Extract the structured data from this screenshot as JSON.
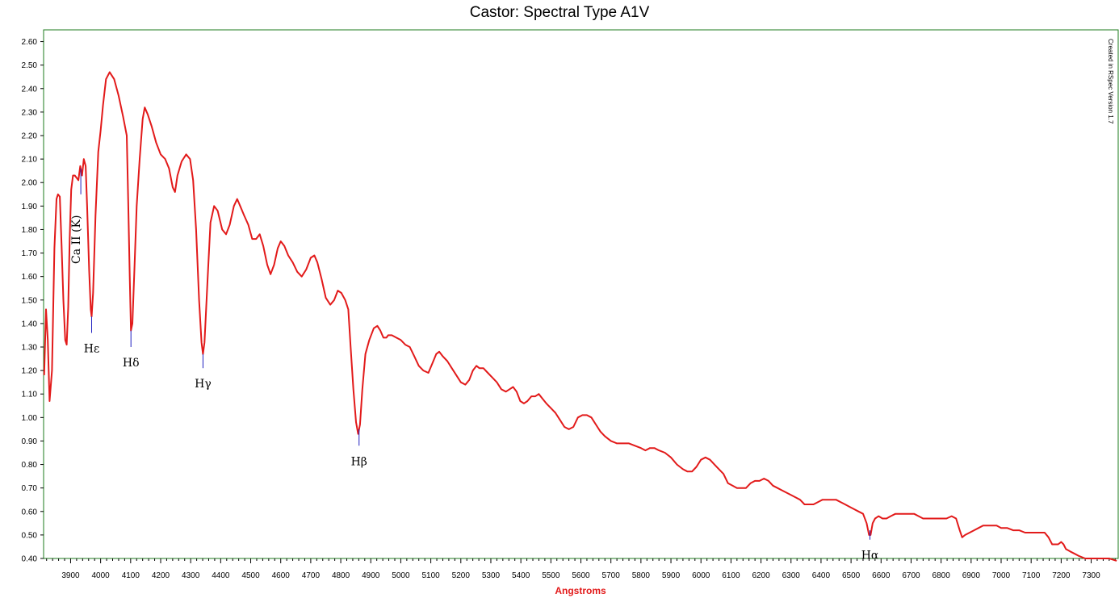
{
  "chart_data": {
    "type": "line",
    "title": "Castor: Spectral Type A1V",
    "xlabel": "Angstroms",
    "ylabel": "",
    "xlim": [
      3810,
      7390
    ],
    "ylim": [
      0.4,
      2.65
    ],
    "x_ticks": [
      3900,
      4000,
      4100,
      4200,
      4300,
      4400,
      4500,
      4600,
      4700,
      4800,
      4900,
      5000,
      5100,
      5200,
      5300,
      5400,
      5500,
      5600,
      5700,
      5800,
      5900,
      6000,
      6100,
      6200,
      6300,
      6400,
      6500,
      6600,
      6700,
      6800,
      6900,
      7000,
      7100,
      7200,
      7300
    ],
    "y_ticks": [
      "0.40",
      "0.50",
      "0.60",
      "0.70",
      "0.80",
      "0.90",
      "1.00",
      "1.10",
      "1.20",
      "1.30",
      "1.40",
      "1.50",
      "1.60",
      "1.70",
      "1.80",
      "1.90",
      "2.00",
      "2.10",
      "2.20",
      "2.30",
      "2.40",
      "2.50",
      "2.60"
    ],
    "grid": false,
    "series": [
      {
        "color": "#e21a1a",
        "points": [
          [
            3812,
            1.18
          ],
          [
            3818,
            1.46
          ],
          [
            3824,
            1.33
          ],
          [
            3830,
            1.07
          ],
          [
            3838,
            1.2
          ],
          [
            3846,
            1.72
          ],
          [
            3853,
            1.93
          ],
          [
            3858,
            1.95
          ],
          [
            3864,
            1.94
          ],
          [
            3870,
            1.73
          ],
          [
            3876,
            1.5
          ],
          [
            3882,
            1.33
          ],
          [
            3887,
            1.31
          ],
          [
            3892,
            1.47
          ],
          [
            3897,
            1.76
          ],
          [
            3902,
            1.97
          ],
          [
            3908,
            2.03
          ],
          [
            3914,
            2.03
          ],
          [
            3920,
            2.02
          ],
          [
            3926,
            2.01
          ],
          [
            3932,
            2.07
          ],
          [
            3938,
            2.03
          ],
          [
            3944,
            2.1
          ],
          [
            3950,
            2.07
          ],
          [
            3955,
            1.9
          ],
          [
            3962,
            1.62
          ],
          [
            3967,
            1.46
          ],
          [
            3970,
            1.43
          ],
          [
            3975,
            1.53
          ],
          [
            3983,
            1.86
          ],
          [
            3992,
            2.13
          ],
          [
            4000,
            2.22
          ],
          [
            4008,
            2.33
          ],
          [
            4018,
            2.44
          ],
          [
            4030,
            2.47
          ],
          [
            4045,
            2.44
          ],
          [
            4060,
            2.37
          ],
          [
            4075,
            2.28
          ],
          [
            4087,
            2.2
          ],
          [
            4092,
            1.92
          ],
          [
            4097,
            1.6
          ],
          [
            4101,
            1.37
          ],
          [
            4106,
            1.4
          ],
          [
            4113,
            1.65
          ],
          [
            4120,
            1.9
          ],
          [
            4130,
            2.1
          ],
          [
            4140,
            2.27
          ],
          [
            4147,
            2.32
          ],
          [
            4157,
            2.29
          ],
          [
            4170,
            2.24
          ],
          [
            4185,
            2.17
          ],
          [
            4200,
            2.12
          ],
          [
            4215,
            2.1
          ],
          [
            4228,
            2.06
          ],
          [
            4240,
            1.98
          ],
          [
            4248,
            1.96
          ],
          [
            4256,
            2.03
          ],
          [
            4270,
            2.09
          ],
          [
            4285,
            2.12
          ],
          [
            4298,
            2.1
          ],
          [
            4308,
            2.01
          ],
          [
            4318,
            1.8
          ],
          [
            4328,
            1.5
          ],
          [
            4336,
            1.32
          ],
          [
            4341,
            1.27
          ],
          [
            4346,
            1.32
          ],
          [
            4356,
            1.58
          ],
          [
            4366,
            1.83
          ],
          [
            4378,
            1.9
          ],
          [
            4390,
            1.88
          ],
          [
            4405,
            1.8
          ],
          [
            4418,
            1.78
          ],
          [
            4430,
            1.82
          ],
          [
            4444,
            1.9
          ],
          [
            4455,
            1.93
          ],
          [
            4465,
            1.9
          ],
          [
            4478,
            1.86
          ],
          [
            4492,
            1.82
          ],
          [
            4505,
            1.76
          ],
          [
            4518,
            1.76
          ],
          [
            4530,
            1.78
          ],
          [
            4542,
            1.73
          ],
          [
            4555,
            1.65
          ],
          [
            4566,
            1.61
          ],
          [
            4578,
            1.65
          ],
          [
            4590,
            1.72
          ],
          [
            4600,
            1.75
          ],
          [
            4612,
            1.73
          ],
          [
            4625,
            1.69
          ],
          [
            4640,
            1.66
          ],
          [
            4655,
            1.62
          ],
          [
            4670,
            1.6
          ],
          [
            4685,
            1.63
          ],
          [
            4700,
            1.68
          ],
          [
            4712,
            1.69
          ],
          [
            4722,
            1.66
          ],
          [
            4736,
            1.59
          ],
          [
            4750,
            1.51
          ],
          [
            4765,
            1.48
          ],
          [
            4778,
            1.5
          ],
          [
            4790,
            1.54
          ],
          [
            4802,
            1.53
          ],
          [
            4815,
            1.5
          ],
          [
            4825,
            1.46
          ],
          [
            4833,
            1.3
          ],
          [
            4842,
            1.12
          ],
          [
            4851,
            0.98
          ],
          [
            4858,
            0.93
          ],
          [
            4864,
            0.97
          ],
          [
            4872,
            1.12
          ],
          [
            4882,
            1.27
          ],
          [
            4895,
            1.33
          ],
          [
            4910,
            1.38
          ],
          [
            4922,
            1.39
          ],
          [
            4932,
            1.37
          ],
          [
            4942,
            1.34
          ],
          [
            4952,
            1.34
          ],
          [
            4958,
            1.35
          ],
          [
            4970,
            1.35
          ],
          [
            4985,
            1.34
          ],
          [
            5000,
            1.33
          ],
          [
            5015,
            1.31
          ],
          [
            5030,
            1.3
          ],
          [
            5045,
            1.26
          ],
          [
            5060,
            1.22
          ],
          [
            5075,
            1.2
          ],
          [
            5092,
            1.19
          ],
          [
            5105,
            1.23
          ],
          [
            5118,
            1.27
          ],
          [
            5128,
            1.28
          ],
          [
            5140,
            1.26
          ],
          [
            5155,
            1.24
          ],
          [
            5170,
            1.21
          ],
          [
            5185,
            1.18
          ],
          [
            5200,
            1.15
          ],
          [
            5215,
            1.14
          ],
          [
            5228,
            1.16
          ],
          [
            5240,
            1.2
          ],
          [
            5252,
            1.22
          ],
          [
            5262,
            1.21
          ],
          [
            5275,
            1.21
          ],
          [
            5290,
            1.19
          ],
          [
            5305,
            1.17
          ],
          [
            5320,
            1.15
          ],
          [
            5335,
            1.12
          ],
          [
            5350,
            1.11
          ],
          [
            5362,
            1.12
          ],
          [
            5374,
            1.13
          ],
          [
            5386,
            1.11
          ],
          [
            5398,
            1.07
          ],
          [
            5410,
            1.06
          ],
          [
            5422,
            1.07
          ],
          [
            5435,
            1.09
          ],
          [
            5448,
            1.09
          ],
          [
            5460,
            1.1
          ],
          [
            5472,
            1.08
          ],
          [
            5485,
            1.06
          ],
          [
            5500,
            1.04
          ],
          [
            5515,
            1.02
          ],
          [
            5530,
            0.99
          ],
          [
            5545,
            0.96
          ],
          [
            5560,
            0.95
          ],
          [
            5575,
            0.96
          ],
          [
            5590,
            1.0
          ],
          [
            5605,
            1.01
          ],
          [
            5620,
            1.01
          ],
          [
            5635,
            1.0
          ],
          [
            5650,
            0.97
          ],
          [
            5665,
            0.94
          ],
          [
            5680,
            0.92
          ],
          [
            5700,
            0.9
          ],
          [
            5720,
            0.89
          ],
          [
            5740,
            0.89
          ],
          [
            5760,
            0.89
          ],
          [
            5780,
            0.88
          ],
          [
            5800,
            0.87
          ],
          [
            5815,
            0.86
          ],
          [
            5830,
            0.87
          ],
          [
            5845,
            0.87
          ],
          [
            5860,
            0.86
          ],
          [
            5880,
            0.85
          ],
          [
            5900,
            0.83
          ],
          [
            5920,
            0.8
          ],
          [
            5940,
            0.78
          ],
          [
            5955,
            0.77
          ],
          [
            5970,
            0.77
          ],
          [
            5985,
            0.79
          ],
          [
            6000,
            0.82
          ],
          [
            6015,
            0.83
          ],
          [
            6030,
            0.82
          ],
          [
            6045,
            0.8
          ],
          [
            6060,
            0.78
          ],
          [
            6075,
            0.76
          ],
          [
            6090,
            0.72
          ],
          [
            6105,
            0.71
          ],
          [
            6120,
            0.7
          ],
          [
            6135,
            0.7
          ],
          [
            6150,
            0.7
          ],
          [
            6165,
            0.72
          ],
          [
            6180,
            0.73
          ],
          [
            6195,
            0.73
          ],
          [
            6210,
            0.74
          ],
          [
            6225,
            0.73
          ],
          [
            6240,
            0.71
          ],
          [
            6255,
            0.7
          ],
          [
            6270,
            0.69
          ],
          [
            6285,
            0.68
          ],
          [
            6300,
            0.67
          ],
          [
            6315,
            0.66
          ],
          [
            6330,
            0.65
          ],
          [
            6345,
            0.63
          ],
          [
            6360,
            0.63
          ],
          [
            6375,
            0.63
          ],
          [
            6390,
            0.64
          ],
          [
            6405,
            0.65
          ],
          [
            6420,
            0.65
          ],
          [
            6435,
            0.65
          ],
          [
            6450,
            0.65
          ],
          [
            6465,
            0.64
          ],
          [
            6480,
            0.63
          ],
          [
            6495,
            0.62
          ],
          [
            6510,
            0.61
          ],
          [
            6525,
            0.6
          ],
          [
            6540,
            0.59
          ],
          [
            6552,
            0.55
          ],
          [
            6560,
            0.5
          ],
          [
            6565,
            0.5
          ],
          [
            6572,
            0.55
          ],
          [
            6580,
            0.57
          ],
          [
            6592,
            0.58
          ],
          [
            6605,
            0.57
          ],
          [
            6618,
            0.57
          ],
          [
            6632,
            0.58
          ],
          [
            6648,
            0.59
          ],
          [
            6665,
            0.59
          ],
          [
            6680,
            0.59
          ],
          [
            6695,
            0.59
          ],
          [
            6710,
            0.59
          ],
          [
            6725,
            0.58
          ],
          [
            6740,
            0.57
          ],
          [
            6760,
            0.57
          ],
          [
            6780,
            0.57
          ],
          [
            6800,
            0.57
          ],
          [
            6818,
            0.57
          ],
          [
            6835,
            0.58
          ],
          [
            6850,
            0.57
          ],
          [
            6862,
            0.52
          ],
          [
            6870,
            0.49
          ],
          [
            6880,
            0.5
          ],
          [
            6895,
            0.51
          ],
          [
            6910,
            0.52
          ],
          [
            6925,
            0.53
          ],
          [
            6940,
            0.54
          ],
          [
            6955,
            0.54
          ],
          [
            6970,
            0.54
          ],
          [
            6985,
            0.54
          ],
          [
            7000,
            0.53
          ],
          [
            7020,
            0.53
          ],
          [
            7040,
            0.52
          ],
          [
            7060,
            0.52
          ],
          [
            7080,
            0.51
          ],
          [
            7100,
            0.51
          ],
          [
            7120,
            0.51
          ],
          [
            7135,
            0.51
          ],
          [
            7145,
            0.51
          ],
          [
            7158,
            0.49
          ],
          [
            7170,
            0.46
          ],
          [
            7180,
            0.46
          ],
          [
            7190,
            0.46
          ],
          [
            7200,
            0.47
          ],
          [
            7208,
            0.46
          ],
          [
            7216,
            0.44
          ],
          [
            7230,
            0.43
          ],
          [
            7245,
            0.42
          ],
          [
            7260,
            0.41
          ],
          [
            7280,
            0.4
          ],
          [
            7300,
            0.4
          ],
          [
            7330,
            0.4
          ],
          [
            7360,
            0.4
          ],
          [
            7385,
            0.39
          ]
        ]
      }
    ],
    "line_labels": [
      {
        "label": "Ca II (K)",
        "x": 3934,
        "y": 2.06,
        "y2": 1.95,
        "rotated": true
      },
      {
        "label": "Hε",
        "x": 3970,
        "y": 1.43,
        "y2": 1.36
      },
      {
        "label": "Hδ",
        "x": 4101,
        "y": 1.37,
        "y2": 1.3
      },
      {
        "label": "Hγ",
        "x": 4341,
        "y": 1.27,
        "y2": 1.21
      },
      {
        "label": "Hβ",
        "x": 4861,
        "y": 0.95,
        "y2": 0.88
      },
      {
        "label": "Hα",
        "x": 6563,
        "y": 0.52,
        "y2": 0.48
      }
    ],
    "annotation": "Created in RSpec Version 1.7"
  },
  "colors": {
    "line": "#e21a1a",
    "frame": "#1e7b1e",
    "marker": "#1f1fbf",
    "xlabel": "#e21a1a"
  }
}
